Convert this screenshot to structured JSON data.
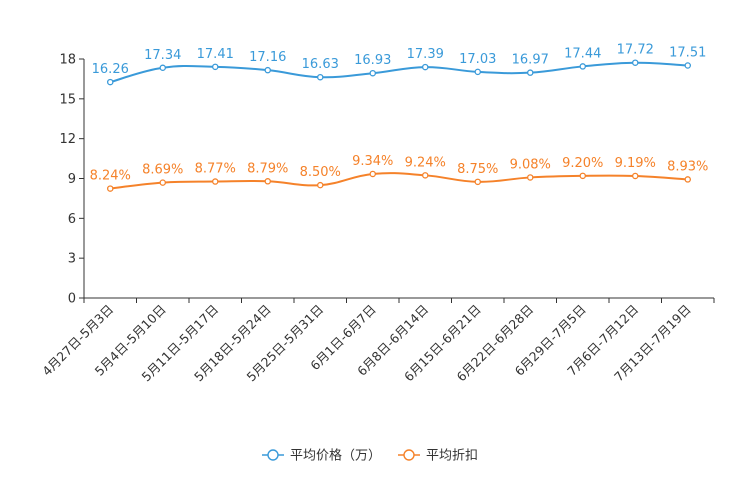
{
  "chart_data": {
    "type": "line",
    "title": "",
    "xlabel": "",
    "ylabel": "",
    "ylim": [
      0,
      18
    ],
    "yticks": [
      "0",
      "3",
      "6",
      "9",
      "12",
      "15",
      "18"
    ],
    "categories": [
      "4月27日-5月3日",
      "5月4日-5月10日",
      "5月11日-5月17日",
      "5月18日-5月24日",
      "5月25日-5月31日",
      "6月1日-6月7日",
      "6月8日-6月14日",
      "6月15日-6月21日",
      "6月22日-6月28日",
      "6月29日-7月5日",
      "7月6日-7月12日",
      "7月13日-7月19日"
    ],
    "series": [
      {
        "name": "平均价格（万）",
        "color": "#3a9ad9",
        "values": [
          16.26,
          17.34,
          17.41,
          17.16,
          16.63,
          16.93,
          17.39,
          17.03,
          16.97,
          17.44,
          17.72,
          17.51
        ],
        "labels": [
          "16.26",
          "17.34",
          "17.41",
          "17.16",
          "16.63",
          "16.93",
          "17.39",
          "17.03",
          "16.97",
          "17.44",
          "17.72",
          "17.51"
        ]
      },
      {
        "name": "平均折扣",
        "color": "#f5822a",
        "values": [
          8.24,
          8.69,
          8.77,
          8.79,
          8.5,
          9.34,
          9.24,
          8.75,
          9.08,
          9.2,
          9.19,
          8.93
        ],
        "labels": [
          "8.24%",
          "8.69%",
          "8.77%",
          "8.79%",
          "8.50%",
          "9.34%",
          "9.24%",
          "8.75%",
          "9.08%",
          "9.20%",
          "9.19%",
          "8.93%"
        ]
      }
    ],
    "legend_position": "bottom-center"
  }
}
